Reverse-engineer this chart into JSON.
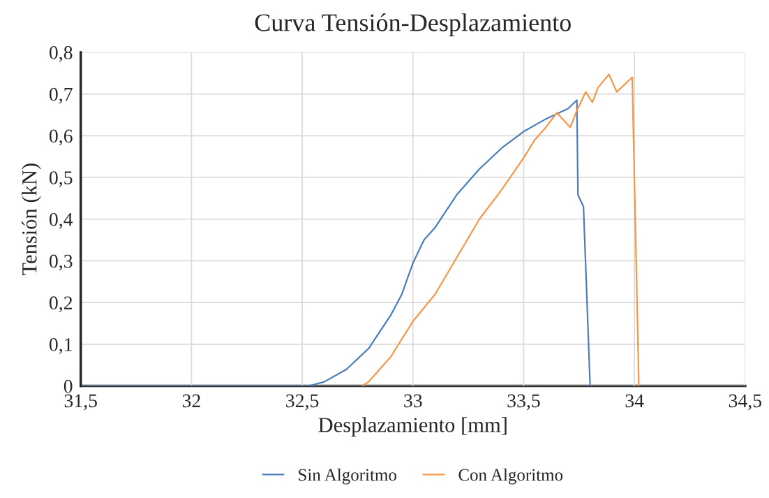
{
  "chart_data": {
    "type": "line",
    "title": "Curva Tensión-Desplazamiento",
    "xlabel": "Desplazamiento [mm]",
    "ylabel": "Tensión (kN)",
    "xlim": [
      31.5,
      34.5
    ],
    "ylim": [
      0,
      0.8
    ],
    "xticks": [
      {
        "value": 31.5,
        "label": "31,5"
      },
      {
        "value": 32,
        "label": "32"
      },
      {
        "value": 32.5,
        "label": "32,5"
      },
      {
        "value": 33,
        "label": "33"
      },
      {
        "value": 33.5,
        "label": "33,5"
      },
      {
        "value": 34,
        "label": "34"
      },
      {
        "value": 34.5,
        "label": "34,5"
      }
    ],
    "yticks": [
      {
        "value": 0,
        "label": "0"
      },
      {
        "value": 0.1,
        "label": "0,1"
      },
      {
        "value": 0.2,
        "label": "0,2"
      },
      {
        "value": 0.3,
        "label": "0,3"
      },
      {
        "value": 0.4,
        "label": "0,4"
      },
      {
        "value": 0.5,
        "label": "0,5"
      },
      {
        "value": 0.6,
        "label": "0,6"
      },
      {
        "value": 0.7,
        "label": "0,7"
      },
      {
        "value": 0.8,
        "label": "0,8"
      }
    ],
    "grid": true,
    "legend": "bottom",
    "line_style": "solid",
    "series": [
      {
        "name": "Sin Algoritmo",
        "color": "#4a7ebb",
        "x": [
          31.5,
          32.53,
          32.6,
          32.7,
          32.8,
          32.9,
          32.95,
          33.0,
          33.05,
          33.1,
          33.2,
          33.3,
          33.4,
          33.5,
          33.6,
          33.7,
          33.74,
          33.745,
          33.77,
          33.8
        ],
        "values": [
          0,
          0,
          0.01,
          0.04,
          0.09,
          0.17,
          0.22,
          0.295,
          0.35,
          0.38,
          0.46,
          0.52,
          0.57,
          0.61,
          0.64,
          0.665,
          0.685,
          0.458,
          0.43,
          0
        ]
      },
      {
        "name": "Con Algoritmo",
        "color": "#f79646",
        "x": [
          32.77,
          32.8,
          32.9,
          33.0,
          33.1,
          33.2,
          33.3,
          33.4,
          33.5,
          33.55,
          33.6,
          33.65,
          33.71,
          33.74,
          33.78,
          33.81,
          33.835,
          33.885,
          33.92,
          33.99,
          34.02
        ],
        "values": [
          0,
          0.01,
          0.07,
          0.155,
          0.22,
          0.31,
          0.4,
          0.47,
          0.547,
          0.59,
          0.62,
          0.655,
          0.62,
          0.66,
          0.705,
          0.68,
          0.715,
          0.747,
          0.705,
          0.74,
          0
        ]
      }
    ]
  }
}
